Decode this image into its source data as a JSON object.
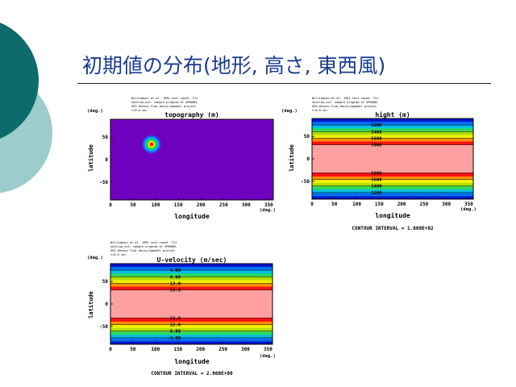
{
  "slide": {
    "title": "初期値の分布(地形, 高さ, 東西風)",
    "colors": {
      "title": "#1b3d8f",
      "deco_dark": "#0d6b6b",
      "deco_light": "#9ccccc"
    }
  },
  "panels": [
    {
      "id": "topography",
      "header_lines": [
        "Williamson et al. 1992 test case5. T21",
        "shallow_sol: sample program of SPMODEL",
        "GFD_Dennou Club davis/spmodel project",
        "t=0.0 sec"
      ],
      "unit_tag": "(deg.)",
      "title": "topography (m)",
      "ylabel": "latitude",
      "xlabel": "longitude",
      "xunit": "(deg.)",
      "xticks": [
        "0",
        "50",
        "100",
        "150",
        "200",
        "250",
        "300",
        "350"
      ],
      "yticks": [
        "50",
        "0",
        "-50"
      ],
      "contour_labels": [],
      "footer": ""
    },
    {
      "id": "height",
      "header_lines": [
        "Williamson et al. 1992 test case5. T21",
        "shallow_sol: sample program of SPMODEL",
        "GFD_Dennou Club davis/spmodel project",
        "t=0.0 sec"
      ],
      "unit_tag": "(deg.)",
      "title": "hight (m)",
      "ylabel": "latitude",
      "xlabel": "longitude",
      "xunit": "(deg.)",
      "xticks": [
        "0",
        "50",
        "100",
        "150",
        "200",
        "250",
        "300",
        "350"
      ],
      "yticks": [
        "50",
        "0",
        "-50"
      ],
      "contour_labels": [
        "5200",
        "5400",
        "5600",
        "5800",
        "5800",
        "5600",
        "5400",
        "5200"
      ],
      "footer": "CONTOUR INTERVAL = 1.000E+02"
    },
    {
      "id": "u-velocity",
      "header_lines": [
        "Williamson et al. 1992 test case5. T21",
        "shallow_sol: sample program of SPMODEL",
        "GFD_Dennou Club davis/spmodel project",
        "t=0.0 sec"
      ],
      "unit_tag": "(deg.)",
      "title": "U-velocity (m/sec)",
      "ylabel": "latitude",
      "xlabel": "longitude",
      "xunit": "(deg.)",
      "xticks": [
        "0",
        "50",
        "100",
        "150",
        "200",
        "250",
        "300",
        "350"
      ],
      "yticks": [
        "50",
        "0",
        "-50"
      ],
      "contour_labels": [
        "4.00",
        "8.00",
        "12.0",
        "16.0",
        "16.0",
        "12.0",
        "8.00",
        "4.00"
      ],
      "footer": "CONTOUR INTERVAL = 2.000E+00"
    }
  ]
}
